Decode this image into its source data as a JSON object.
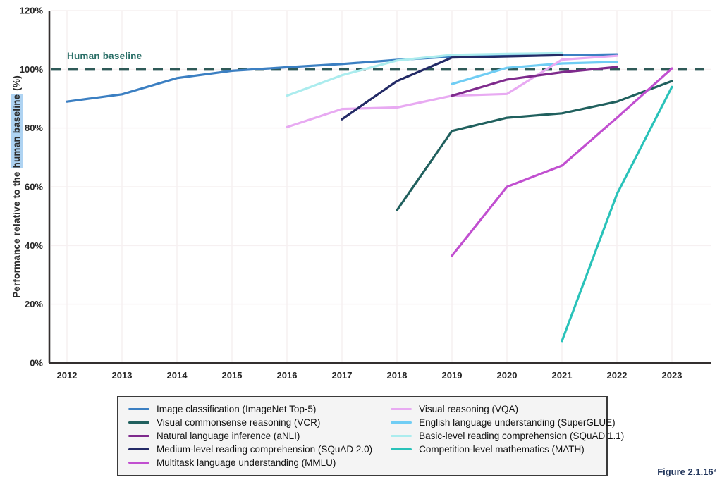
{
  "annotation": {
    "human_baseline_label": "Human baseline"
  },
  "caption": "Figure 2.1.16²",
  "ylabel": {
    "prefix": "Performance relative to the ",
    "highlight": "human baseline",
    "suffix": " (%)"
  },
  "colors": {
    "baseline_dash": "#2e5957",
    "baseline_text": "#2a6f67",
    "axis": "#332f2f",
    "grid": "#f6f0f1",
    "caption_text": "#22365c"
  },
  "chart_data": {
    "type": "line",
    "title": "",
    "xlabel": "",
    "ylabel": "Performance relative to the human baseline (%)",
    "x_ticks": [
      2012,
      2013,
      2014,
      2015,
      2016,
      2017,
      2018,
      2019,
      2020,
      2021,
      2022,
      2023
    ],
    "y_ticks": [
      0,
      20,
      40,
      60,
      80,
      100,
      120
    ],
    "y_tick_labels": [
      "0%",
      "20%",
      "40%",
      "60%",
      "80%",
      "100%",
      "120%"
    ],
    "xlim": [
      2011.7,
      2023.7
    ],
    "ylim": [
      0,
      120
    ],
    "grid": true,
    "legend_position": "bottom",
    "baseline": {
      "value": 100,
      "label": "Human baseline",
      "style": "dashed"
    },
    "series": [
      {
        "id": "imagenet",
        "name": "Image classification (ImageNet Top-5)",
        "color": "#3b7fc2",
        "points": [
          [
            2012,
            89
          ],
          [
            2013,
            91.5
          ],
          [
            2014,
            97
          ],
          [
            2015,
            99.5
          ],
          [
            2016,
            100.7
          ],
          [
            2017,
            101.8
          ],
          [
            2018,
            103.2
          ],
          [
            2019,
            104.3
          ],
          [
            2020,
            104.6
          ],
          [
            2021,
            104.8
          ],
          [
            2022,
            105.1
          ]
        ]
      },
      {
        "id": "squad11",
        "name": "Basic-level reading comprehension (SQuAD 1.1)",
        "color": "#abecee",
        "points": [
          [
            2016,
            91
          ],
          [
            2017,
            98
          ],
          [
            2018,
            103
          ],
          [
            2019,
            104.9
          ],
          [
            2020,
            105.3
          ],
          [
            2021,
            105.5
          ]
        ]
      },
      {
        "id": "superglue",
        "name": "English language understanding (SuperGLUE)",
        "color": "#70cdf4",
        "points": [
          [
            2019,
            95
          ],
          [
            2020,
            100.5
          ],
          [
            2021,
            102
          ],
          [
            2022,
            102.5
          ]
        ]
      },
      {
        "id": "vqa",
        "name": "Visual reasoning (VQA)",
        "color": "#e8aaf2",
        "points": [
          [
            2016,
            80.3
          ],
          [
            2017,
            86.5
          ],
          [
            2018,
            87
          ],
          [
            2019,
            91
          ],
          [
            2020,
            91.6
          ],
          [
            2021,
            103.3
          ],
          [
            2022,
            104.6
          ]
        ]
      },
      {
        "id": "anli",
        "name": "Natural language inference (aNLI)",
        "color": "#7e2a8c",
        "points": [
          [
            2019,
            91
          ],
          [
            2020,
            96.5
          ],
          [
            2021,
            99
          ],
          [
            2022,
            100.8
          ]
        ]
      },
      {
        "id": "vcr",
        "name": "Visual commonsense reasoning (VCR)",
        "color": "#20605e",
        "points": [
          [
            2018,
            52
          ],
          [
            2019,
            79
          ],
          [
            2020,
            83.5
          ],
          [
            2021,
            85
          ],
          [
            2022,
            89
          ],
          [
            2023,
            96
          ]
        ]
      },
      {
        "id": "squad2",
        "name": "Medium-level reading comprehension (SQuAD 2.0)",
        "color": "#232a66",
        "points": [
          [
            2017,
            83
          ],
          [
            2018,
            96
          ],
          [
            2019,
            104
          ],
          [
            2020,
            104.4
          ],
          [
            2021,
            104.8
          ]
        ]
      },
      {
        "id": "mmlu",
        "name": "Multitask language understanding (MMLU)",
        "color": "#c14fd0",
        "points": [
          [
            2019,
            36.5
          ],
          [
            2020,
            60
          ],
          [
            2021,
            67.2
          ],
          [
            2022,
            83.5
          ],
          [
            2023,
            100.3
          ]
        ]
      },
      {
        "id": "math",
        "name": "Competition-level mathematics (MATH)",
        "color": "#29c2b9",
        "points": [
          [
            2021,
            7.5
          ],
          [
            2022,
            57.5
          ],
          [
            2023,
            94
          ]
        ]
      }
    ],
    "legend_order": [
      "imagenet",
      "vcr",
      "anli",
      "squad2",
      "mmlu",
      "vqa",
      "superglue",
      "squad11",
      "math"
    ]
  }
}
